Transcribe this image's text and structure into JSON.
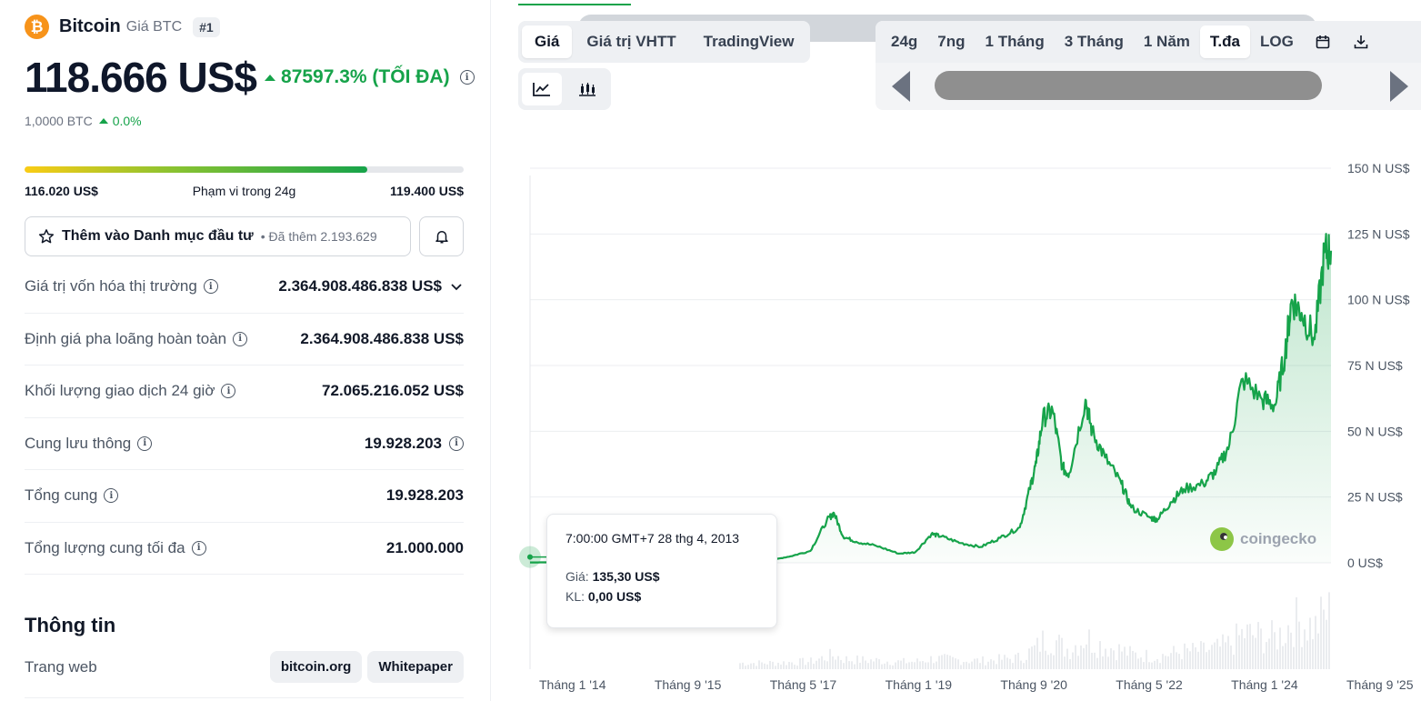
{
  "coin": {
    "name": "Bitcoin",
    "symbol_label": "Giá BTC",
    "rank": "#1",
    "logo_glyph": "₿",
    "price": "118.666 US$",
    "change": "87597.3% (TỐI ĐA)",
    "btc_amount": "1,0000 BTC",
    "btc_change": "0.0%"
  },
  "range24h": {
    "low": "116.020 US$",
    "label": "Phạm vi trong 24g",
    "high": "119.400 US$",
    "fill_percent": 78
  },
  "portfolio": {
    "label": "Thêm vào Danh mục đầu tư",
    "sub": "Đã thêm 2.193.629"
  },
  "stats": [
    {
      "label": "Giá trị vốn hóa thị trường",
      "value": "2.364.908.486.838 US$"
    },
    {
      "label": "Định giá pha loãng hoàn toàn",
      "value": "2.364.908.486.838 US$"
    },
    {
      "label": "Khối lượng giao dịch 24 giờ",
      "value": "72.065.216.052 US$"
    },
    {
      "label": "Cung lưu thông",
      "value": "19.928.203"
    },
    {
      "label": "Tổng cung",
      "value": "19.928.203"
    },
    {
      "label": "Tổng lượng cung tối đa",
      "value": "21.000.000"
    }
  ],
  "info": {
    "title": "Thông tin",
    "website_label": "Trang web",
    "links": [
      "bitcoin.org",
      "Whitepaper"
    ]
  },
  "chart_tabs": [
    "Giá",
    "Giá trị VHTT",
    "TradingView"
  ],
  "range_tabs": [
    "24g",
    "7ng",
    "1 Tháng",
    "3 Tháng",
    "1 Năm",
    "T.đa",
    "LOG"
  ],
  "active_range": "T.đa",
  "tooltip": {
    "time": "7:00:00 GMT+7 28 thg 4, 2013",
    "price_label": "Giá:",
    "price_value": "135,30 US$",
    "volume_label": "KL:",
    "volume_value": "0,00 US$"
  },
  "watermark": "coingecko",
  "colors": {
    "up": "#16a34a",
    "line": "#16a34a",
    "brand": "#f7931a"
  },
  "chart_data": {
    "type": "line",
    "ylim": [
      0,
      150000
    ],
    "y_ticks": [
      "150 N US$",
      "125 N US$",
      "100 N US$",
      "75 N US$",
      "50 N US$",
      "25 N US$",
      "0 US$"
    ],
    "x_ticks": [
      "Tháng 1 '14",
      "Tháng 9 '15",
      "Tháng 5 '17",
      "Tháng 1 '19",
      "Tháng 9 '20",
      "Tháng 5 '22",
      "Tháng 1 '24",
      "Tháng 9 '25"
    ],
    "x_range": [
      2013.32,
      2025.55
    ],
    "series": [
      {
        "x": [
          2013.32,
          2013.8,
          2014.0,
          2014.5,
          2015.0,
          2015.5,
          2016.0,
          2016.5,
          2017.0,
          2017.3,
          2017.6,
          2017.85,
          2017.96,
          2018.1,
          2018.3,
          2018.6,
          2018.95,
          2019.2,
          2019.45,
          2019.6,
          2019.9,
          2020.2,
          2020.5,
          2020.8,
          2020.95,
          2021.05,
          2021.15,
          2021.3,
          2021.45,
          2021.55,
          2021.8,
          2021.9,
          2022.1,
          2022.35,
          2022.5,
          2022.8,
          2022.9,
          2023.1,
          2023.3,
          2023.6,
          2023.8,
          2024.0,
          2024.2,
          2024.5,
          2024.7,
          2024.85,
          2024.95,
          2025.1,
          2025.3,
          2025.45,
          2025.55
        ],
        "y": [
          135,
          200,
          800,
          600,
          300,
          250,
          400,
          650,
          1000,
          2500,
          4500,
          16000,
          19000,
          10000,
          8000,
          6500,
          3500,
          4000,
          11000,
          10000,
          7500,
          6000,
          9500,
          13500,
          28000,
          38000,
          55000,
          58000,
          36000,
          34000,
          62000,
          50000,
          40000,
          30000,
          21000,
          17000,
          16500,
          23000,
          28000,
          30000,
          35000,
          45000,
          70000,
          62000,
          60000,
          80000,
          100000,
          95000,
          85000,
          118000,
          118666
        ]
      }
    ],
    "volume_note": "",
    "grid": true
  }
}
